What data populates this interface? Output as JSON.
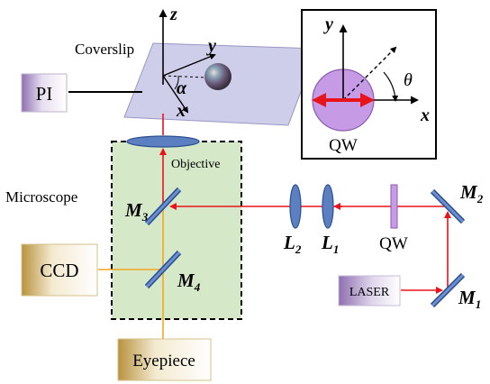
{
  "labels": {
    "pi": "PI",
    "coverslip": "Coverslip",
    "objective": "Objective",
    "microscope": "Microscope",
    "ccd": "CCD",
    "eyepiece": "Eyepiece",
    "laser": "LASER",
    "qw_bottom": "QW",
    "qw_inset": "QW"
  },
  "math": {
    "z_axis": "z",
    "y_axis": "y",
    "x_axis": "x",
    "alpha": "α",
    "theta": "θ",
    "inset_y": "y",
    "inset_x": "x",
    "m1": {
      "base": "M",
      "sub": "1"
    },
    "m2": {
      "base": "M",
      "sub": "2"
    },
    "m3": {
      "base": "M",
      "sub": "3"
    },
    "m4": {
      "base": "M",
      "sub": "4"
    },
    "l1": {
      "base": "L",
      "sub": "1"
    },
    "l2": {
      "base": "L",
      "sub": "2"
    }
  },
  "colors": {
    "beam": "#e8141b",
    "imaging_path": "#f5a623",
    "microscope_fill": "#d5e8c8",
    "coverslip_fill": "#c9c8e8",
    "qw_circle": "#c79ae6",
    "optics_blue": "#5b7fc0"
  }
}
